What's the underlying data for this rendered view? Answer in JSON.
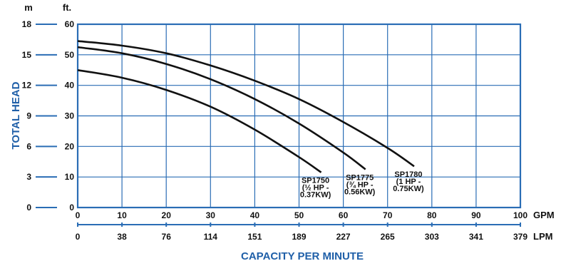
{
  "chart_data": {
    "type": "line",
    "title": "",
    "xlabel": "CAPACITY PER MINUTE",
    "ylabel": "TOTAL HEAD",
    "x_unit": "GPM",
    "x_secondary_unit": "LPM",
    "y_unit_left": "m",
    "y_unit_right": "ft.",
    "xlim": [
      0,
      100
    ],
    "ylim": [
      0,
      60
    ],
    "grid": true,
    "x_ticks": [
      0,
      10,
      20,
      30,
      40,
      50,
      60,
      70,
      80,
      90,
      100
    ],
    "x_ticks_secondary": [
      "0",
      "38",
      "76",
      "114",
      "151",
      "189",
      "227",
      "265",
      "303",
      "341",
      "379"
    ],
    "y_ticks_ft": [
      0,
      10,
      20,
      30,
      40,
      50,
      60
    ],
    "y_ticks_m": [
      "0",
      "3",
      "6",
      "9",
      "12",
      "15",
      "18"
    ],
    "series": [
      {
        "name": "SP1750",
        "label_lines": [
          "SP1750",
          "(½ HP -",
          "0.37KW)"
        ],
        "x": [
          0,
          10,
          20,
          30,
          40,
          50,
          55
        ],
        "y": [
          45,
          42.5,
          38.5,
          33,
          25.5,
          16.5,
          11.5
        ]
      },
      {
        "name": "SP1775",
        "label_lines": [
          "SP1775",
          "(¾ HP -",
          "0.56KW)"
        ],
        "x": [
          0,
          10,
          20,
          30,
          40,
          50,
          60,
          65
        ],
        "y": [
          52.5,
          50.5,
          47,
          42,
          35.5,
          27.5,
          18,
          12.5
        ]
      },
      {
        "name": "SP1780",
        "label_lines": [
          "SP1780",
          "(1 HP -",
          "0.75KW)"
        ],
        "x": [
          0,
          10,
          20,
          30,
          40,
          50,
          60,
          70,
          76
        ],
        "y": [
          54.5,
          53,
          50.5,
          46.5,
          41.5,
          35.5,
          28,
          19.5,
          13.5
        ]
      }
    ],
    "colors": {
      "grid": "#2a6db5",
      "axis_title": "#1f5fa8",
      "curve": "#111111"
    }
  }
}
